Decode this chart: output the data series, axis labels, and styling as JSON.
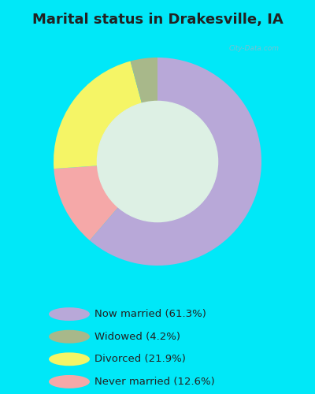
{
  "title": "Marital status in Drakesville, IA",
  "categories": [
    "Now married",
    "Widowed",
    "Divorced",
    "Never married"
  ],
  "values": [
    61.3,
    4.2,
    21.9,
    12.6
  ],
  "colors": [
    "#b8a8d8",
    "#a8b88a",
    "#f5f566",
    "#f5a8a8"
  ],
  "legend_labels": [
    "Now married (61.3%)",
    "Widowed (4.2%)",
    "Divorced (21.9%)",
    "Never married (12.6%)"
  ],
  "bg_color_outer": "#00e8f8",
  "bg_color_inner": "#ddf0e4",
  "watermark": "City-Data.com",
  "donut_width": 0.42,
  "title_color": "#222222",
  "title_fontsize": 13
}
